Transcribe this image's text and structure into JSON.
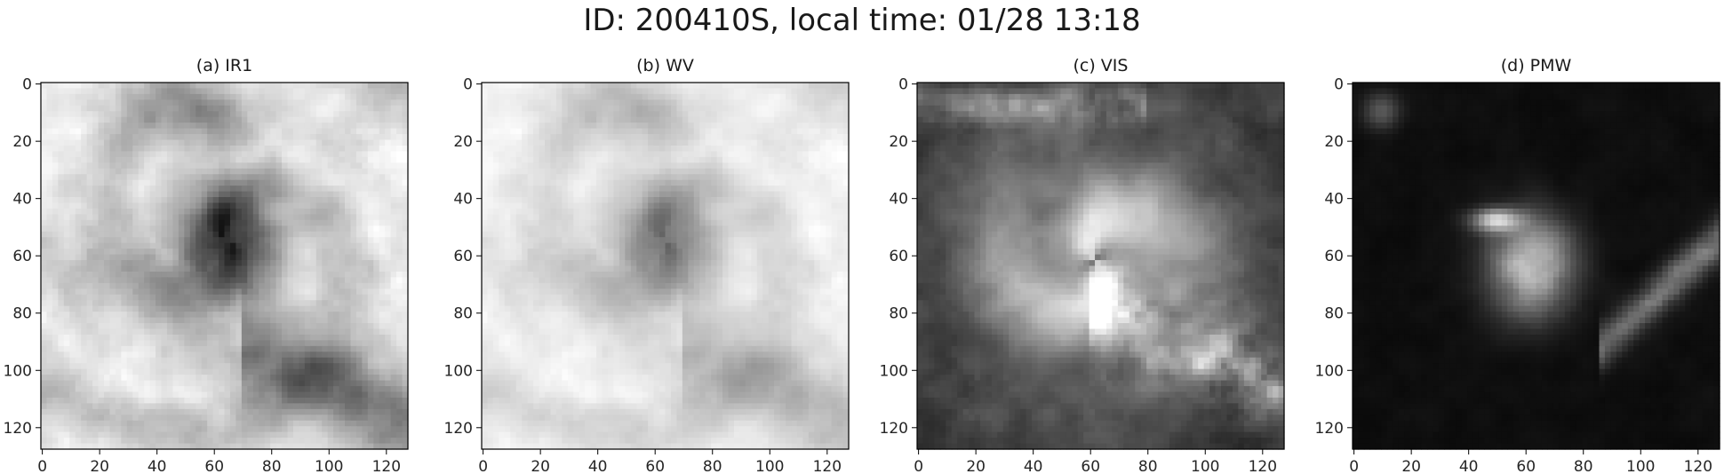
{
  "figure": {
    "suptitle": "ID: 200410S, local time: 01/28 13:18"
  },
  "chart_data": [
    {
      "type": "heatmap",
      "title": "(a) IR1",
      "colormap": "gray",
      "xlim": [
        0,
        127
      ],
      "ylim": [
        127,
        0
      ],
      "xticks": [
        0,
        20,
        40,
        60,
        80,
        100,
        120
      ],
      "yticks": [
        0,
        20,
        40,
        60,
        80,
        100,
        120
      ],
      "xtick_labels": [
        "0",
        "20",
        "40",
        "60",
        "80",
        "100",
        "120"
      ],
      "ytick_labels": [
        "0",
        "20",
        "40",
        "60",
        "80",
        "100",
        "120"
      ],
      "eye_center": [
        65,
        55
      ],
      "variant": "ir"
    },
    {
      "type": "heatmap",
      "title": "(b) WV",
      "colormap": "gray",
      "xlim": [
        0,
        127
      ],
      "ylim": [
        127,
        0
      ],
      "xticks": [
        0,
        20,
        40,
        60,
        80,
        100,
        120
      ],
      "yticks": [
        0,
        20,
        40,
        60,
        80,
        100,
        120
      ],
      "xtick_labels": [
        "0",
        "20",
        "40",
        "60",
        "80",
        "100",
        "120"
      ],
      "ytick_labels": [
        "0",
        "20",
        "40",
        "60",
        "80",
        "100",
        "120"
      ],
      "eye_center": [
        64,
        55
      ],
      "variant": "wv"
    },
    {
      "type": "heatmap",
      "title": "(c) VIS",
      "colormap": "gray",
      "xlim": [
        0,
        127
      ],
      "ylim": [
        127,
        0
      ],
      "xticks": [
        0,
        20,
        40,
        60,
        80,
        100,
        120
      ],
      "yticks": [
        0,
        20,
        40,
        60,
        80,
        100,
        120
      ],
      "xtick_labels": [
        "0",
        "20",
        "40",
        "60",
        "80",
        "100",
        "120"
      ],
      "ytick_labels": [
        "0",
        "20",
        "40",
        "60",
        "80",
        "100",
        "120"
      ],
      "eye_center": [
        62,
        62
      ],
      "variant": "vis"
    },
    {
      "type": "heatmap",
      "title": "(d) PMW",
      "colormap": "gray",
      "xlim": [
        0,
        127
      ],
      "ylim": [
        127,
        0
      ],
      "xticks": [
        0,
        20,
        40,
        60,
        80,
        100,
        120
      ],
      "yticks": [
        0,
        20,
        40,
        60,
        80,
        100,
        120
      ],
      "xtick_labels": [
        "0",
        "20",
        "40",
        "60",
        "80",
        "100",
        "120"
      ],
      "ytick_labels": [
        "0",
        "20",
        "40",
        "60",
        "80",
        "100",
        "120"
      ],
      "eye_center": [
        62,
        64
      ],
      "variant": "pmw"
    }
  ]
}
